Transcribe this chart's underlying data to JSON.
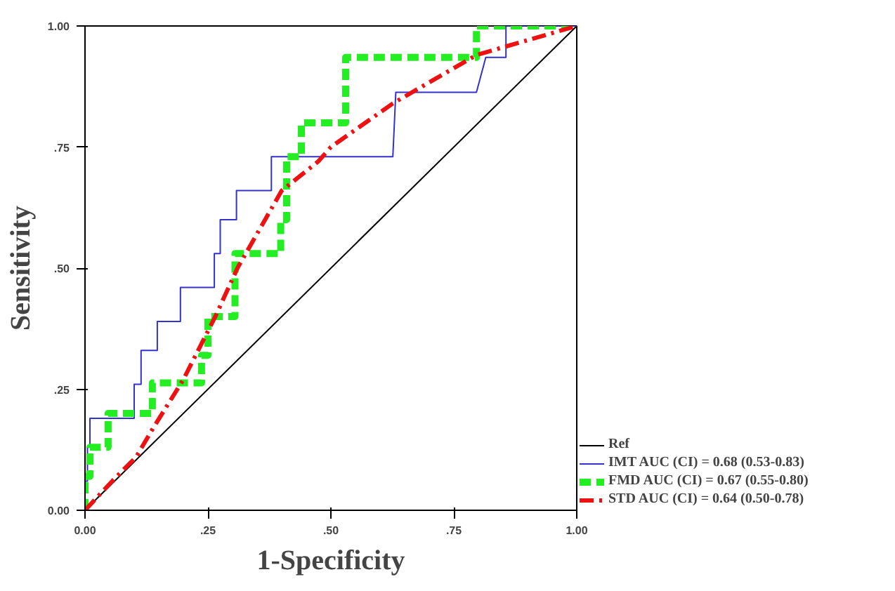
{
  "chart_data": {
    "type": "line",
    "xlabel": "1-Specificity",
    "ylabel": "Sensitivity",
    "xlim": [
      0,
      1
    ],
    "ylim": [
      0,
      1
    ],
    "xticks": [
      {
        "value": 0,
        "label": "0.00"
      },
      {
        "value": 0.25,
        "label": ".25"
      },
      {
        "value": 0.5,
        "label": ".50"
      },
      {
        "value": 0.75,
        "label": ".75"
      },
      {
        "value": 1,
        "label": "1.00"
      }
    ],
    "yticks": [
      {
        "value": 0,
        "label": "0.00"
      },
      {
        "value": 0.25,
        "label": ".25"
      },
      {
        "value": 0.5,
        "label": ".50"
      },
      {
        "value": 0.75,
        "label": ".75"
      },
      {
        "value": 1,
        "label": "1.00"
      }
    ],
    "grid": false,
    "legend": "right",
    "marker": "none",
    "series": [
      {
        "name": "Ref",
        "color": "#000000",
        "line_style": "solid",
        "x": [
          0,
          1
        ],
        "values": [
          0,
          1
        ]
      },
      {
        "name": "IMT AUC (CI) = 0.68 (0.53-0.83)",
        "color": "#3333cc",
        "line_style": "solid",
        "x": [
          0,
          0,
          0.005,
          0.005,
          0.01,
          0.01,
          0.033,
          0.033,
          0.1,
          0.1,
          0.114,
          0.114,
          0.147,
          0.147,
          0.194,
          0.194,
          0.263,
          0.263,
          0.275,
          0.275,
          0.308,
          0.308,
          0.379,
          0.379,
          0.626,
          0.632,
          0.796,
          0.815,
          0.856,
          0.856,
          1
        ],
        "values": [
          0,
          0.06,
          0.06,
          0.13,
          0.13,
          0.19,
          0.19,
          0.19,
          0.19,
          0.26,
          0.26,
          0.33,
          0.33,
          0.39,
          0.39,
          0.46,
          0.46,
          0.53,
          0.53,
          0.6,
          0.6,
          0.66,
          0.66,
          0.73,
          0.73,
          0.863,
          0.863,
          0.935,
          0.935,
          1,
          1
        ]
      },
      {
        "name": "FMD AUC (CI) = 0.67 (0.55-0.80)",
        "color": "#22ee22",
        "line_style": "dashed",
        "x": [
          0,
          0,
          0.01,
          0.01,
          0.047,
          0.047,
          0.137,
          0.137,
          0.237,
          0.237,
          0.25,
          0.25,
          0.305,
          0.305,
          0.398,
          0.398,
          0.41,
          0.41,
          0.44,
          0.44,
          0.53,
          0.53,
          0.796,
          0.796,
          1
        ],
        "values": [
          0,
          0.07,
          0.07,
          0.13,
          0.13,
          0.2,
          0.2,
          0.263,
          0.263,
          0.32,
          0.32,
          0.4,
          0.4,
          0.53,
          0.53,
          0.6,
          0.6,
          0.73,
          0.73,
          0.8,
          0.8,
          0.935,
          0.935,
          1,
          1
        ]
      },
      {
        "name": "STD AUC (CI) = 0.64 (0.50-0.78)",
        "color": "#ee1111",
        "line_style": "dashdot",
        "x": [
          0,
          0.057,
          0.104,
          0.137,
          0.2,
          0.265,
          0.31,
          0.4,
          0.474,
          0.5,
          0.626,
          0.796,
          1
        ],
        "values": [
          0,
          0.062,
          0.11,
          0.167,
          0.27,
          0.4,
          0.5,
          0.66,
          0.72,
          0.75,
          0.84,
          0.94,
          1
        ]
      }
    ]
  }
}
